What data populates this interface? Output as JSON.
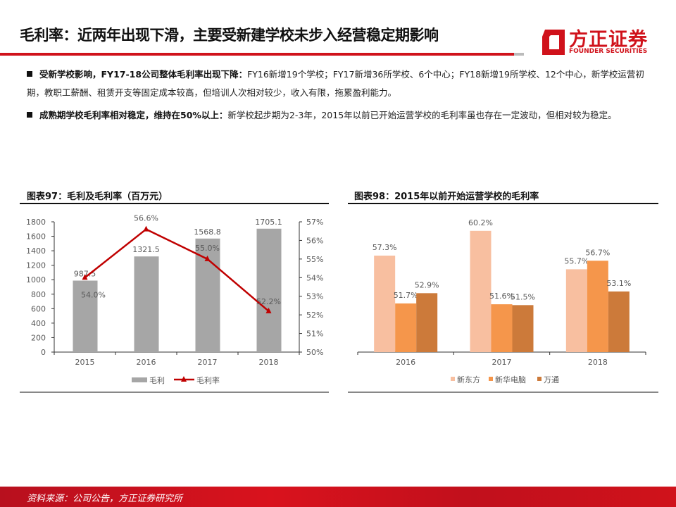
{
  "header": {
    "title": "毛利率：近两年出现下滑，主要受新建学校未步入经营稳定期影响",
    "logo_cn": "方正证券",
    "logo_en": "FOUNDER SECURITIES",
    "accent": "#d0121b"
  },
  "bullets": [
    {
      "bold": "受新学校影响，FY17-18公司整体毛利率出现下降：",
      "text": "FY16新增19个学校；FY17新增36所学校、6个中心；FY18新增19所学校、12个中心，新学校运营初期，教职工薪酬、租赁开支等固定成本较高，但培训人次相对较少，收入有限，拖累盈利能力。"
    },
    {
      "bold": "成熟期学校毛利率相对稳定，维持在50%以上：",
      "text": "新学校起步期为2-3年，2015年以前已开始运营学校的毛利率虽也存在一定波动，但相对较为稳定。"
    }
  ],
  "footer": {
    "source": "资料来源：公司公告，方正证券研究所"
  },
  "chart_data": [
    {
      "type": "bar+line",
      "title": "图表97：毛利及毛利率（百万元）",
      "categories": [
        "2015",
        "2016",
        "2017",
        "2018"
      ],
      "series": [
        {
          "name": "毛利",
          "type": "bar",
          "axis": "left",
          "values": [
            987.5,
            1321.5,
            1568.8,
            1705.1
          ],
          "color": "#a6a6a6",
          "labels": [
            "987.5",
            "1321.5",
            "1568.8",
            "1705.1"
          ]
        },
        {
          "name": "毛利率",
          "type": "line",
          "axis": "right",
          "values": [
            54.0,
            56.6,
            55.0,
            52.2
          ],
          "color": "#c00000",
          "labels": [
            "54.0%",
            "56.6%",
            "55.0%",
            "52.2%"
          ]
        }
      ],
      "ylim_left": [
        0,
        1800
      ],
      "yticks_left": [
        "0",
        "200",
        "400",
        "600",
        "800",
        "1000",
        "1200",
        "1400",
        "1600",
        "1800"
      ],
      "ylim_right": [
        50,
        57
      ],
      "yticks_right": [
        "50%",
        "51%",
        "52%",
        "53%",
        "54%",
        "55%",
        "56%",
        "57%"
      ],
      "grid": false,
      "legend": "bottom"
    },
    {
      "type": "bar",
      "title": "图表98：2015年以前开始运营学校的毛利率",
      "categories": [
        "2016",
        "2017",
        "2018"
      ],
      "series": [
        {
          "name": "新东方",
          "values": [
            57.3,
            60.2,
            55.7
          ],
          "color": "#f8bfa0",
          "labels": [
            "57.3%",
            "60.2%",
            "55.7%"
          ]
        },
        {
          "name": "新华电脑",
          "values": [
            51.7,
            51.6,
            56.7
          ],
          "color": "#f5964b",
          "labels": [
            "51.7%",
            "51.6%",
            "56.7%"
          ]
        },
        {
          "name": "万通",
          "values": [
            52.9,
            51.5,
            53.1
          ],
          "color": "#cc7a3a",
          "labels": [
            "52.9%",
            "51.5%",
            "53.1%"
          ]
        }
      ],
      "ylim": [
        46,
        62
      ],
      "y_axis_shown": false,
      "grid": false,
      "legend": "bottom"
    }
  ]
}
